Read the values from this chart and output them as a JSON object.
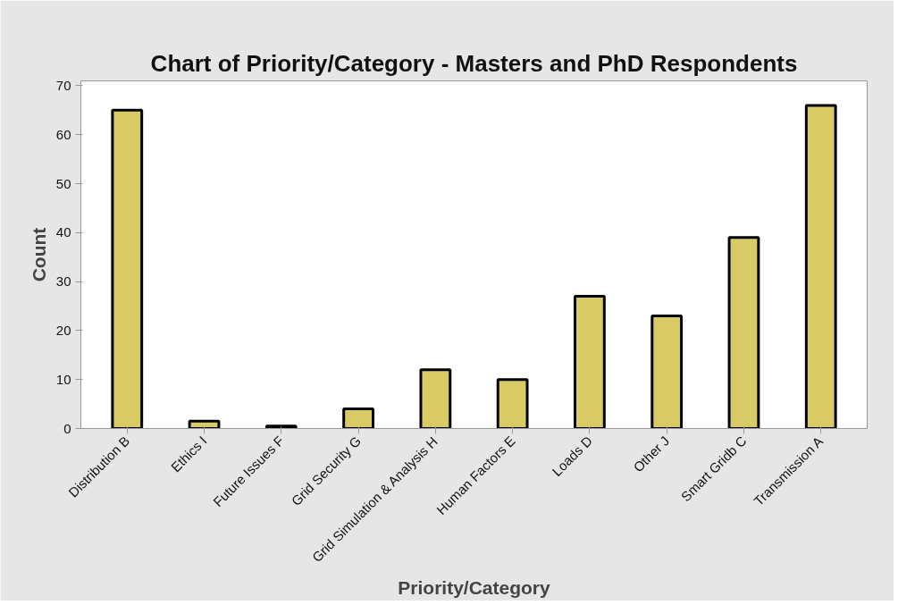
{
  "chart_data": {
    "type": "bar",
    "title": "Chart of Priority/Category - Masters and PhD Respondents",
    "xlabel": "Priority/Category",
    "ylabel": "Count",
    "categories": [
      "Distribution B",
      "Ethics I",
      "Future Issues F",
      "Grid Security G",
      "Grid Simulation & Analysis H",
      "Human Factors E",
      "Loads D",
      "Other J",
      "Smart Gridb C",
      "Transmission A"
    ],
    "values": [
      65,
      1.5,
      0.5,
      4,
      12,
      10,
      27,
      23,
      39,
      66
    ],
    "color": "#d8cb66",
    "ylim": [
      0,
      71
    ],
    "yticks": [
      0,
      10,
      20,
      30,
      40,
      50,
      60,
      70
    ],
    "grid": false
  }
}
